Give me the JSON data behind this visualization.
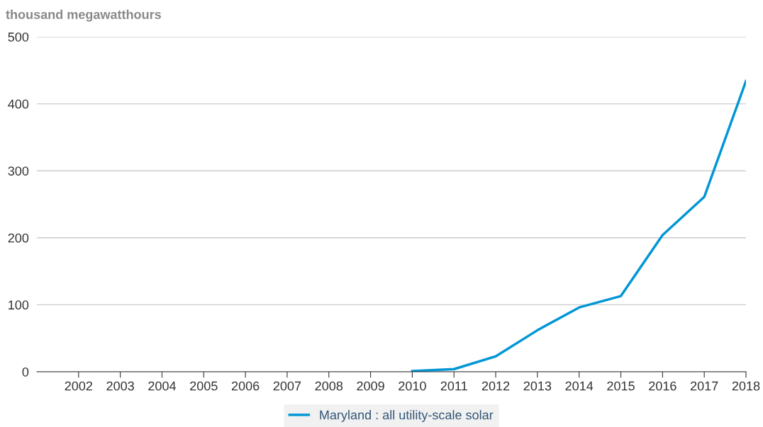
{
  "chart_data": {
    "type": "line",
    "ylabel": "thousand megawatthours",
    "x": [
      2010,
      2011,
      2012,
      2013,
      2014,
      2015,
      2016,
      2017,
      2018
    ],
    "series": [
      {
        "name": "Maryland : all utility-scale solar",
        "color": "#0096d6",
        "values": [
          1,
          4,
          23,
          62,
          96,
          113,
          204,
          261,
          434
        ]
      }
    ],
    "xlim": [
      2001,
      2018
    ],
    "xticks": [
      2002,
      2003,
      2004,
      2005,
      2006,
      2007,
      2008,
      2009,
      2010,
      2011,
      2012,
      2013,
      2014,
      2015,
      2016,
      2017,
      2018
    ],
    "ylim": [
      0,
      500
    ],
    "yticks": [
      0,
      100,
      200,
      300,
      400,
      500
    ],
    "grid": "y",
    "legend": "bottom",
    "marker": "none",
    "line_style": "solid"
  }
}
